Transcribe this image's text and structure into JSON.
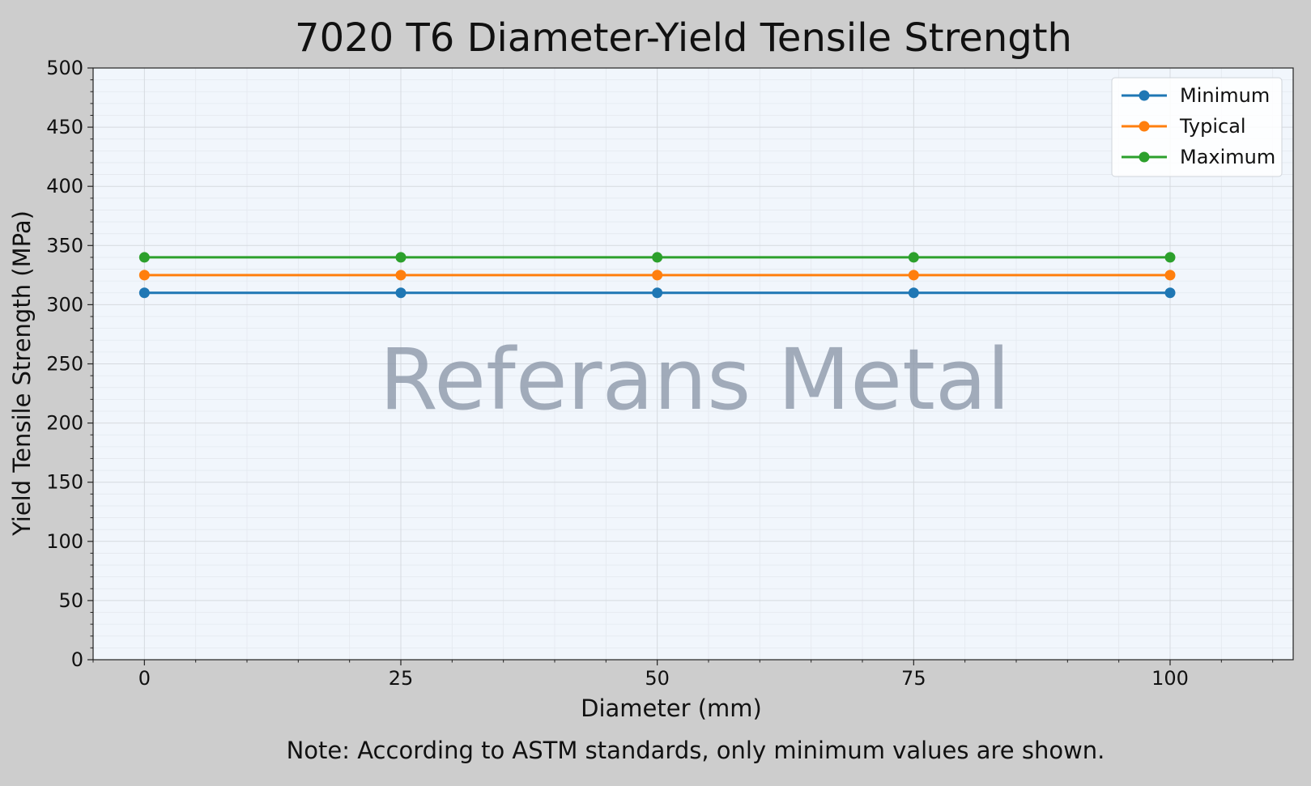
{
  "chart_data": {
    "type": "line",
    "title": "7020 T6 Diameter-Yield Tensile Strength",
    "xlabel": "Diameter (mm)",
    "ylabel": "Yield Tensile Strength (MPa)",
    "note": "Note: According to ASTM standards, only minimum values are shown.",
    "watermark": "Referans Metal",
    "x": [
      0,
      25,
      50,
      75,
      100
    ],
    "xlim": [
      -5,
      112
    ],
    "ylim": [
      0,
      500
    ],
    "xticks": [
      0,
      25,
      50,
      75,
      100
    ],
    "yticks": [
      0,
      50,
      100,
      150,
      200,
      250,
      300,
      350,
      400,
      450,
      500
    ],
    "grid": true,
    "legend_position": "top-right",
    "series": [
      {
        "name": "Minimum",
        "color": "#1f77b4",
        "values": [
          310,
          310,
          310,
          310,
          310
        ]
      },
      {
        "name": "Typical",
        "color": "#ff7f0e",
        "values": [
          325,
          325,
          325,
          325,
          325
        ]
      },
      {
        "name": "Maximum",
        "color": "#2ca02c",
        "values": [
          340,
          340,
          340,
          340,
          340
        ]
      }
    ],
    "colors": {
      "page_background": "#cdcdcd",
      "plot_background": "#f1f6fc",
      "grid": "#d6dadf",
      "watermark": "#8b96a6"
    }
  }
}
